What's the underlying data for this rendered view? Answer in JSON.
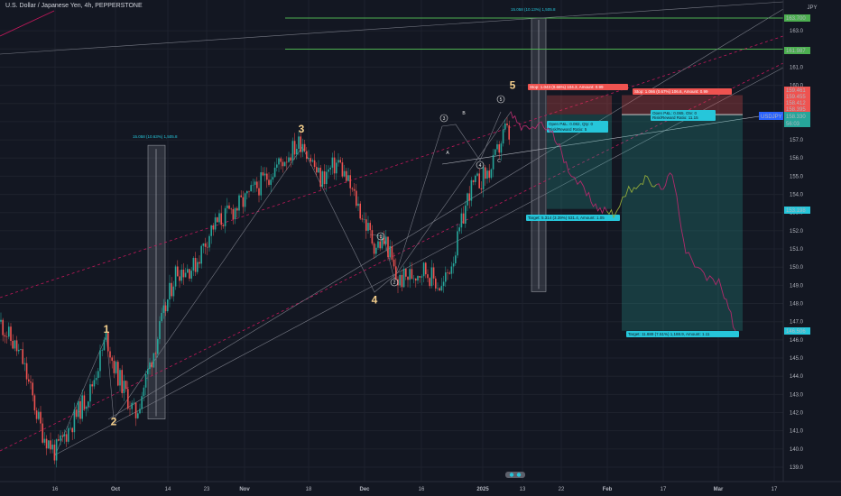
{
  "header": {
    "title": "U.S. Dollar / Japanese Yen, 4h, PEPPERSTONE"
  },
  "currency": "JPY",
  "colors": {
    "bg": "#131722",
    "grid": "#1e222d",
    "up": "#26a69a",
    "down": "#ef5350",
    "forecast_down": "#b02a6a",
    "forecast_up": "#8fa83a",
    "guide_green": "#4caf50",
    "channel_red": "#c2185b",
    "target_teal": "#26c6da"
  },
  "chart_data": {
    "type": "line",
    "title": "U.S. Dollar / Japanese Yen, 4h, PEPPERSTONE",
    "ylim": [
      138.5,
      164.0
    ],
    "y_ticks": [
      139.0,
      140.0,
      141.0,
      142.0,
      143.0,
      144.0,
      145.0,
      146.0,
      147.0,
      148.0,
      149.0,
      150.0,
      151.0,
      152.0,
      153.0,
      154.0,
      155.0,
      156.0,
      157.0,
      158.0,
      159.0,
      160.0,
      161.0,
      162.0,
      163.0
    ],
    "x_ticks": [
      "16",
      "Oct",
      "14",
      "23",
      "Nov",
      "18",
      "Dec",
      "16",
      "2025",
      "13",
      "22",
      "Feb",
      "17",
      "Mar",
      "17"
    ],
    "price_path_date_index": [
      0,
      1,
      2,
      3,
      4,
      5,
      6,
      7,
      8,
      9,
      10,
      11,
      12,
      13,
      14,
      15,
      16,
      17,
      18,
      19,
      20,
      21,
      22,
      23,
      24,
      25,
      26,
      27,
      28,
      29,
      30,
      31,
      32,
      33,
      34,
      35,
      36,
      37,
      38,
      39,
      40,
      41
    ],
    "price_path": [
      147.0,
      145.0,
      141.0,
      139.8,
      143.2,
      146.2,
      144.6,
      141.8,
      146.2,
      149.8,
      150.0,
      152.2,
      153.6,
      155.2,
      157.0,
      154.8,
      155.8,
      153.6,
      151.2,
      151.4,
      149.2,
      149.9,
      148.8,
      151.0,
      154.2,
      155.4,
      157.6,
      157.0,
      157.8,
      158.2,
      156.9,
      158.4,
      158.4,
      158.0,
      156.3,
      154.0,
      153.0,
      153.4,
      154.9,
      154.0,
      150.6,
      146.5
    ],
    "reference_levels": [
      163.7,
      161.987
    ],
    "price_tags": [
      {
        "value": "163.700",
        "color": "#4caf50"
      },
      {
        "value": "161.987",
        "color": "#4caf50"
      },
      {
        "value": "159.461",
        "color": "#ef5350"
      },
      {
        "value": "159.455",
        "color": "#ef5350"
      },
      {
        "value": "158.412",
        "color": "#ef5350"
      },
      {
        "value": "158.395",
        "color": "#ef5350"
      },
      {
        "value": "153.198",
        "color": "#26c6da"
      },
      {
        "value": "146.506",
        "color": "#26c6da"
      }
    ],
    "current_price": {
      "symbol": "USDJPY",
      "value": "158.330",
      "countdown": "56:03"
    },
    "wave_labels": [
      {
        "label": "1",
        "price": 146.4
      },
      {
        "label": "2",
        "price": 141.3
      },
      {
        "label": "3",
        "price": 157.4
      },
      {
        "label": "4",
        "price": 148.0
      },
      {
        "label": "5",
        "price": 159.8
      }
    ],
    "sub_wave_labels": [
      "1",
      "2",
      "3",
      "4",
      "5",
      "A",
      "B",
      "C"
    ],
    "measurements": [
      "15.058 (10.63%) 1,505.8",
      "15.058 (10.13%) 1,505.8"
    ],
    "positions": [
      {
        "stop": "Stop: 1.043 (0.66%) 104.3, Amount: 0.99",
        "pnl": "Open P&L: 0.082, Qty: 0",
        "rr": "Risk/Reward Ratio: 5",
        "target": "Target: 5.314 (3.39%) 531.4, Amount: 1.05"
      },
      {
        "stop": "Stop: 1.066 (0.67%) 106.6, Amount: 0.99",
        "pnl": "Open P&L: 0.065, Qty: 0",
        "rr": "Risk/Reward Ratio: 11.15",
        "target": "Target: 11.889 (7.51%) 1,188.9, Amount: 1.11"
      }
    ],
    "grid": true
  }
}
